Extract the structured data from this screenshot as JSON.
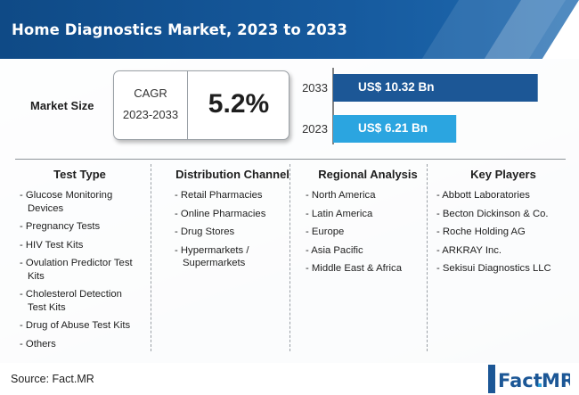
{
  "title": "Home Diagnostics Market, 2023 to 2033",
  "market_size_label": "Market Size",
  "cagr": {
    "label": "CAGR",
    "period": "2023-2033",
    "value": "5.2%"
  },
  "chart_data": {
    "type": "bar",
    "orientation": "horizontal",
    "categories": [
      "2033",
      "2023"
    ],
    "values": [
      10.32,
      6.21
    ],
    "value_labels": [
      "US$ 10.32 Bn",
      "US$ 6.21 Bn"
    ],
    "unit": "US$ Bn",
    "colors": [
      "#1c5796",
      "#2ba5e0"
    ],
    "xlim": [
      0,
      11.5
    ]
  },
  "columns": [
    {
      "heading": "Test Type",
      "items": [
        "- Glucose Monitoring Devices",
        "- Pregnancy Tests",
        "- HIV Test Kits",
        "- Ovulation Predictor Test Kits",
        "- Cholesterol Detection Test Kits",
        "- Drug of Abuse Test Kits",
        "- Others"
      ]
    },
    {
      "heading": "Distribution Channel",
      "items": [
        "- Retail Pharmacies",
        "- Online Pharmacies",
        "- Drug Stores",
        "- Hypermarkets / Supermarkets"
      ]
    },
    {
      "heading": "Regional Analysis",
      "items": [
        "- North America",
        "- Latin America",
        "- Europe",
        "- Asia Pacific",
        "- Middle East & Africa"
      ]
    },
    {
      "heading": "Key Players",
      "items": [
        "- Abbott Laboratories",
        "- Becton Dickinson & Co.",
        "- Roche Holding AG",
        "- ARKRAY Inc.",
        "- Sekisui Diagnostics LLC"
      ]
    }
  ],
  "source": "Source: Fact.MR",
  "logo": {
    "text_main": "Fact",
    "text_dot": ".",
    "text_accent": "MR",
    "dot_color": "#2ba5e0"
  }
}
